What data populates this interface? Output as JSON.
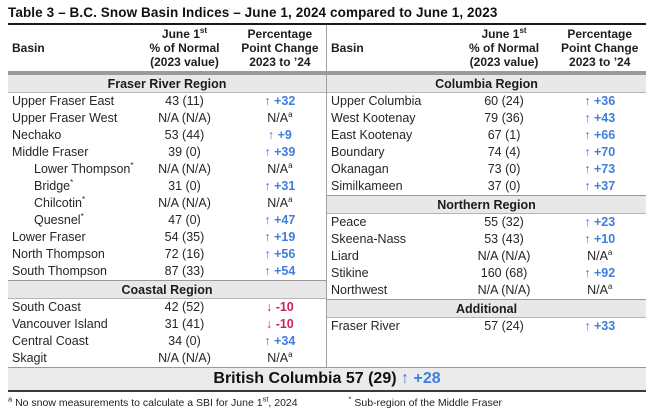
{
  "title": "Table 3 – B.C. Snow Basin Indices – June 1, 2024 compared to June 1, 2023",
  "colors": {
    "increase": "#3e7edc",
    "decrease": "#d31e60",
    "section_bg": "#e8e8e8",
    "summary_bg": "#ebebeb"
  },
  "icons": {
    "up_arrow": "↑",
    "down_arrow": "↓"
  },
  "header": {
    "basin": "Basin",
    "normal_l1": "June 1",
    "normal_sup": "st",
    "normal_l2": "% of Normal",
    "normal_l3": "(2023 value)",
    "pct_l1": "Percentage",
    "pct_l2": "Point Change",
    "pct_l3": "2023 to ’24"
  },
  "left_rows": [
    {
      "type": "section",
      "label": "Fraser River Region"
    },
    {
      "type": "data",
      "basin": "Upper Fraser East",
      "value": "43 (11)",
      "dir": "up",
      "change": "+32"
    },
    {
      "type": "data",
      "basin": "Upper Fraser West",
      "value": "N/A (N/A)",
      "dir": "na",
      "change": "N/A"
    },
    {
      "type": "data",
      "basin": "Nechako",
      "value": "53 (44)",
      "dir": "up",
      "change": "+9"
    },
    {
      "type": "data",
      "basin": "Middle Fraser",
      "value": "39 (0)",
      "dir": "up",
      "change": "+39"
    },
    {
      "type": "data",
      "basin": "Lower Thompson",
      "sub": true,
      "sup": "*",
      "value": "N/A (N/A)",
      "dir": "na",
      "change": "N/A"
    },
    {
      "type": "data",
      "basin": "Bridge",
      "sub": true,
      "sup": "*",
      "value": "31 (0)",
      "dir": "up",
      "change": "+31"
    },
    {
      "type": "data",
      "basin": "Chilcotin",
      "sub": true,
      "sup": "*",
      "value": "N/A (N/A)",
      "dir": "na",
      "change": "N/A"
    },
    {
      "type": "data",
      "basin": "Quesnel",
      "sub": true,
      "sup": "*",
      "value": "47 (0)",
      "dir": "up",
      "change": "+47"
    },
    {
      "type": "data",
      "basin": "Lower Fraser",
      "value": "54 (35)",
      "dir": "up",
      "change": "+19"
    },
    {
      "type": "data",
      "basin": "North Thompson",
      "value": "72 (16)",
      "dir": "up",
      "change": "+56"
    },
    {
      "type": "data",
      "basin": "South Thompson",
      "value": "87 (33)",
      "dir": "up",
      "change": "+54"
    },
    {
      "type": "section",
      "label": "Coastal Region"
    },
    {
      "type": "data",
      "basin": "South Coast",
      "value": "42 (52)",
      "dir": "down",
      "change": "-10"
    },
    {
      "type": "data",
      "basin": "Vancouver Island",
      "value": "31 (41)",
      "dir": "down",
      "change": "-10"
    },
    {
      "type": "data",
      "basin": "Central Coast",
      "value": "34 (0)",
      "dir": "up",
      "change": "+34"
    },
    {
      "type": "data",
      "basin": "Skagit",
      "value": "N/A (N/A)",
      "dir": "na",
      "change": "N/A"
    }
  ],
  "right_rows": [
    {
      "type": "section",
      "label": "Columbia Region"
    },
    {
      "type": "data",
      "basin": "Upper Columbia",
      "value": "60 (24)",
      "dir": "up",
      "change": "+36"
    },
    {
      "type": "data",
      "basin": "West Kootenay",
      "value": "79 (36)",
      "dir": "up",
      "change": "+43"
    },
    {
      "type": "data",
      "basin": "East Kootenay",
      "value": "67 (1)",
      "dir": "up",
      "change": "+66"
    },
    {
      "type": "data",
      "basin": "Boundary",
      "value": "74 (4)",
      "dir": "up",
      "change": "+70"
    },
    {
      "type": "data",
      "basin": "Okanagan",
      "value": "73 (0)",
      "dir": "up",
      "change": "+73"
    },
    {
      "type": "data",
      "basin": "Similkameen",
      "value": "37 (0)",
      "dir": "up",
      "change": "+37"
    },
    {
      "type": "section",
      "label": "Northern Region"
    },
    {
      "type": "data",
      "basin": "Peace",
      "value": "55 (32)",
      "dir": "up",
      "change": "+23"
    },
    {
      "type": "data",
      "basin": "Skeena-Nass",
      "value": "53 (43)",
      "dir": "up",
      "change": "+10"
    },
    {
      "type": "data",
      "basin": "Liard",
      "value": "N/A (N/A)",
      "dir": "na",
      "change": "N/A"
    },
    {
      "type": "data",
      "basin": "Stikine",
      "value": "160 (68)",
      "dir": "up",
      "change": "+92"
    },
    {
      "type": "data",
      "basin": "Northwest",
      "value": "N/A (N/A)",
      "dir": "na",
      "change": "N/A"
    },
    {
      "type": "section",
      "label": "Additional"
    },
    {
      "type": "data",
      "basin": "Fraser River",
      "value": "57 (24)",
      "dir": "up",
      "change": "+33"
    }
  ],
  "summary": {
    "label": "British Columbia",
    "value": "57 (29)",
    "arrow": "↑",
    "change": "+28"
  },
  "footnotes": {
    "na_marker": "a",
    "na_text_before": "No snow measurements to calculate a SBI for June 1",
    "na_sup": "st",
    "na_text_after": ", 2024",
    "sub_marker": "*",
    "sub_text": "Sub-region of the Middle Fraser"
  }
}
